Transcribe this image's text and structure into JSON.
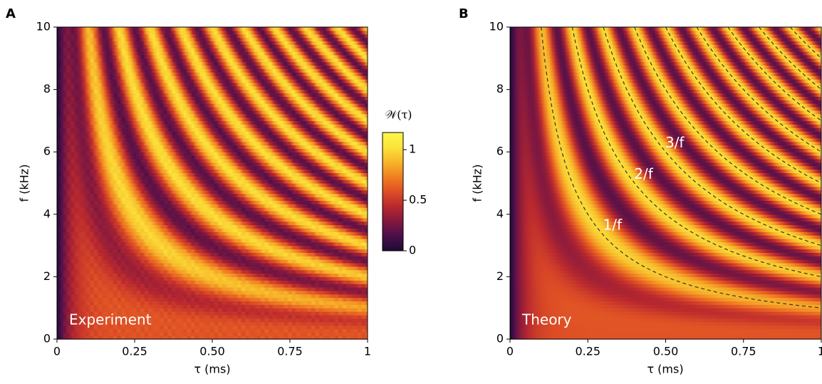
{
  "chart_data": [
    {
      "type": "heatmap",
      "panel_label": "A",
      "annotation": "Experiment",
      "xlabel": "τ (ms)",
      "ylabel": "f (kHz)",
      "xlim": [
        0,
        1
      ],
      "ylim": [
        0,
        10
      ],
      "xticks": [
        0,
        0.25,
        {
          "value": 0.5,
          "label": "0.50"
        },
        0.75,
        1
      ],
      "yticks": [
        0,
        2,
        4,
        6,
        8,
        10
      ],
      "colormap": [
        "#1e0b33",
        "#4a0f4a",
        "#82183f",
        "#b9282e",
        "#de4e25",
        "#f07f22",
        "#f7b52a",
        "#fbe33a",
        "#fdf84c"
      ],
      "colorbar": {
        "label": "𝒲(τ)",
        "lim": [
          0,
          1.17
        ],
        "ticks": [
          0,
          0.5,
          1
        ]
      }
    },
    {
      "type": "heatmap",
      "panel_label": "B",
      "annotation": "Theory",
      "xlabel": "τ (ms)",
      "ylabel": "f (kHz)",
      "xlim": [
        0,
        1
      ],
      "ylim": [
        0,
        10
      ],
      "xticks": [
        0,
        0.25,
        {
          "value": 0.5,
          "label": "0.50"
        },
        0.75,
        1
      ],
      "yticks": [
        0,
        2,
        4,
        6,
        8,
        10
      ],
      "colormap": [
        "#1e0b33",
        "#4a0f4a",
        "#82183f",
        "#b9282e",
        "#de4e25",
        "#f07f22",
        "#f7b52a",
        "#fbe33a",
        "#fdf84c"
      ],
      "curves": {
        "labels": [
          "1/f",
          "2/f",
          "3/f"
        ],
        "multipliers": [
          1,
          2,
          3,
          4,
          5,
          6,
          7,
          8,
          9,
          10
        ]
      }
    }
  ]
}
